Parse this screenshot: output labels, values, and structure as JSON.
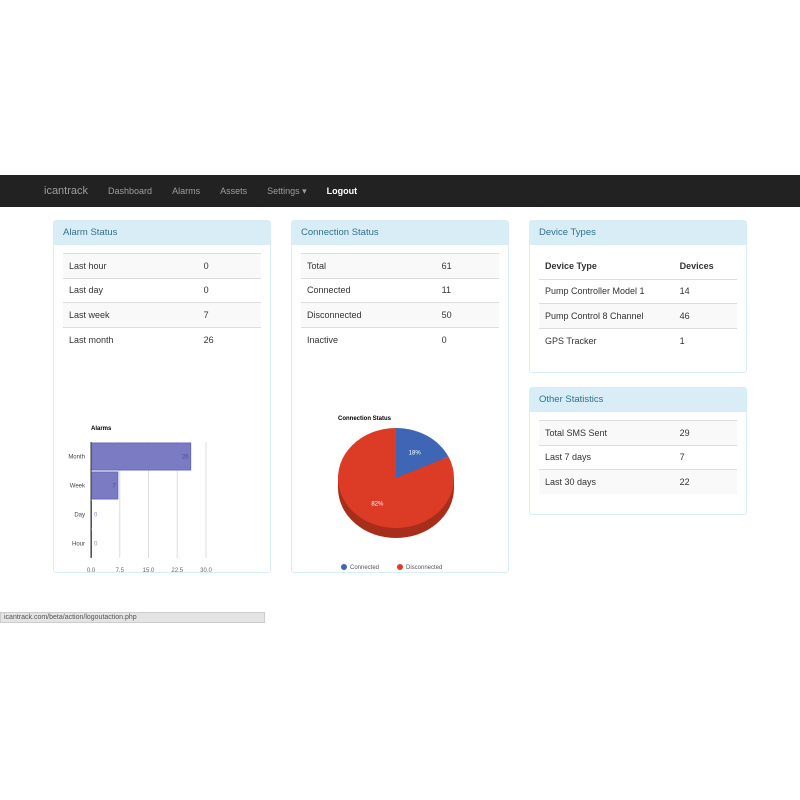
{
  "nav": {
    "brand": "icantrack",
    "items": [
      "Dashboard",
      "Alarms",
      "Assets",
      "Settings"
    ],
    "settings_caret": "▾",
    "logout": "Logout"
  },
  "alarm_status": {
    "title": "Alarm Status",
    "rows": [
      [
        "Last hour",
        "0"
      ],
      [
        "Last day",
        "0"
      ],
      [
        "Last week",
        "7"
      ],
      [
        "Last month",
        "26"
      ]
    ]
  },
  "connection_status": {
    "title": "Connection Status",
    "rows": [
      [
        "Total",
        "61"
      ],
      [
        "Connected",
        "11"
      ],
      [
        "Disconnected",
        "50"
      ],
      [
        "Inactive",
        "0"
      ]
    ]
  },
  "device_types": {
    "title": "Device Types",
    "headers": [
      "Device Type",
      "Devices"
    ],
    "rows": [
      [
        "Pump Controller Model 1",
        "14"
      ],
      [
        "Pump Control 8 Channel",
        "46"
      ],
      [
        "GPS Tracker",
        "1"
      ]
    ]
  },
  "other_statistics": {
    "title": "Other Statistics",
    "rows": [
      [
        "Total SMS Sent",
        "29"
      ],
      [
        "Last 7 days",
        "7"
      ],
      [
        "Last 30 days",
        "22"
      ]
    ]
  },
  "status_bar": "icantrack.com/beta/action/logoutaction.php",
  "chart_data": [
    {
      "type": "bar",
      "orientation": "horizontal",
      "title": "Alarms",
      "categories": [
        "Month",
        "Week",
        "Day",
        "Hour"
      ],
      "values": [
        26,
        7,
        0,
        0
      ],
      "data_labels": [
        "26",
        "7",
        "0",
        "0"
      ],
      "xlim": [
        0,
        30
      ],
      "xticks": [
        "0.0",
        "7.5",
        "15.0",
        "22.5",
        "30.0"
      ],
      "grid": true,
      "color": "#7b7bc4"
    },
    {
      "type": "pie",
      "title": "Connection Status",
      "categories": [
        "Connected",
        "Disconnected"
      ],
      "values": [
        11,
        50
      ],
      "data_labels": [
        "18%",
        "82%"
      ],
      "colors": [
        "#3f66b5",
        "#dc3c25"
      ],
      "legend": "bottom",
      "style": "3d"
    }
  ]
}
